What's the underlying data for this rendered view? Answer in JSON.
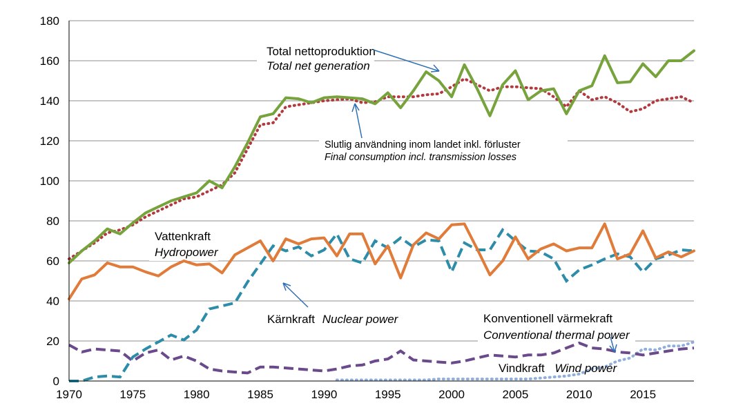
{
  "chart_data": {
    "type": "line",
    "x": [
      1970,
      1971,
      1972,
      1973,
      1974,
      1975,
      1976,
      1977,
      1978,
      1979,
      1980,
      1981,
      1982,
      1983,
      1984,
      1985,
      1986,
      1987,
      1988,
      1989,
      1990,
      1991,
      1992,
      1993,
      1994,
      1995,
      1996,
      1997,
      1998,
      1999,
      2000,
      2001,
      2002,
      2003,
      2004,
      2005,
      2006,
      2007,
      2008,
      2009,
      2010,
      2011,
      2012,
      2013,
      2014,
      2015,
      2016,
      2017,
      2018,
      2019
    ],
    "xlim": [
      1970,
      2019
    ],
    "ylim": [
      0,
      180
    ],
    "xticks": [
      "1970",
      "1975",
      "1980",
      "1985",
      "1990",
      "1995",
      "2000",
      "2005",
      "2010",
      "2015"
    ],
    "yticks": [
      "0",
      "20",
      "40",
      "60",
      "80",
      "100",
      "120",
      "140",
      "160",
      "180"
    ],
    "grid": "horizontal",
    "colors": {
      "total": "#77a33c",
      "consumption": "#b23a3e",
      "hydro": "#e07b39",
      "nuclear": "#2d8ca8",
      "thermal": "#6b4a8c",
      "wind": "#8faedc",
      "arrow": "#2f6fb3"
    },
    "series": [
      {
        "key": "total",
        "style": "solid",
        "values": [
          59,
          65,
          70,
          76,
          73.5,
          79,
          84,
          87,
          90,
          92,
          94,
          100,
          96.5,
          107,
          119,
          132,
          133.5,
          141.5,
          141,
          139,
          141.5,
          142,
          141.5,
          141,
          138.5,
          144,
          136.5,
          145,
          154.5,
          150,
          142,
          158,
          146,
          132.5,
          148,
          155,
          140.5,
          145,
          146,
          133.5,
          145,
          147.5,
          162.5,
          149,
          149.5,
          158.5,
          152,
          160,
          160,
          165
        ]
      },
      {
        "key": "consumption",
        "style": "dotted",
        "values": [
          61,
          65,
          69,
          74,
          75.5,
          78,
          82,
          85,
          88,
          91,
          92,
          95,
          98,
          104,
          116,
          128,
          129,
          137,
          138,
          139,
          140,
          140.5,
          141,
          139,
          139.5,
          142,
          142,
          142,
          143,
          143.5,
          147,
          151,
          148,
          145,
          147,
          147,
          146.5,
          146,
          142,
          137,
          145,
          140.5,
          142,
          139,
          134.5,
          136,
          140,
          141,
          142,
          139
        ]
      },
      {
        "key": "hydro",
        "style": "solid",
        "values": [
          41,
          51,
          53,
          59,
          57,
          57,
          54.5,
          52.5,
          57,
          60,
          58,
          58.5,
          54,
          63,
          66.5,
          70,
          60,
          71,
          68.5,
          71,
          71.5,
          62.5,
          73.5,
          73.5,
          58.5,
          67.5,
          51.5,
          68,
          74,
          71,
          78,
          78.5,
          66,
          53,
          60,
          72,
          61,
          66,
          68.5,
          65,
          66.5,
          66.5,
          78.5,
          61,
          63.5,
          75,
          61.5,
          64.5,
          62,
          65
        ]
      },
      {
        "key": "nuclear",
        "style": "dashed",
        "values": [
          0,
          0,
          2,
          2.5,
          2,
          12,
          16,
          19.5,
          23,
          20.5,
          25.5,
          36,
          37.5,
          39,
          49.5,
          58.5,
          67.5,
          65,
          67,
          62.5,
          65.5,
          73.5,
          61,
          59,
          70,
          66.5,
          71.5,
          67,
          70.5,
          70,
          54.5,
          69,
          65.5,
          65.5,
          75.5,
          70,
          65,
          64.5,
          61,
          50,
          55.5,
          58,
          61,
          63.5,
          62,
          54.5,
          61,
          63,
          65.5,
          65
        ]
      },
      {
        "key": "thermal",
        "style": "dashed",
        "values": [
          18,
          14.5,
          16,
          15.5,
          15,
          10,
          14,
          15.5,
          10.5,
          12.5,
          10,
          6,
          5,
          4.5,
          4,
          7,
          7,
          6.5,
          6,
          5.5,
          5,
          6,
          7.5,
          8,
          10,
          11,
          15,
          10.5,
          10,
          9.5,
          9,
          10,
          11.5,
          13,
          12.5,
          12,
          13,
          13,
          14,
          16.5,
          19,
          16.5,
          16,
          14.5,
          14,
          13,
          14,
          15,
          16,
          16.5
        ]
      },
      {
        "key": "wind",
        "style": "dotted",
        "values": [
          null,
          null,
          null,
          null,
          null,
          null,
          null,
          null,
          null,
          null,
          null,
          null,
          null,
          null,
          null,
          null,
          null,
          null,
          null,
          null,
          null,
          0.5,
          0.5,
          0.5,
          0.5,
          0.5,
          0.5,
          0.5,
          0.5,
          1,
          1,
          1,
          1,
          1,
          1,
          1,
          1,
          1.5,
          2,
          2.5,
          3.5,
          6,
          7,
          10,
          11.5,
          16,
          15.5,
          17.5,
          17.5,
          19.5
        ]
      }
    ]
  },
  "annotations": {
    "total_sv": "Total nettoproduktion",
    "total_en": "Total net generation",
    "cons_sv": "Slutlig användning inom landet inkl. förluster",
    "cons_en": "Final consumption incl. transmission losses",
    "hydro_sv": "Vattenkraft",
    "hydro_en": "Hydropower",
    "nuclear_sv": "Kärnkraft",
    "nuclear_en": "Nuclear power",
    "thermal_sv": "Konventionell värmekraft",
    "thermal_en": "Conventional thermal power",
    "wind_sv": "Vindkraft",
    "wind_en": "Wind power"
  }
}
